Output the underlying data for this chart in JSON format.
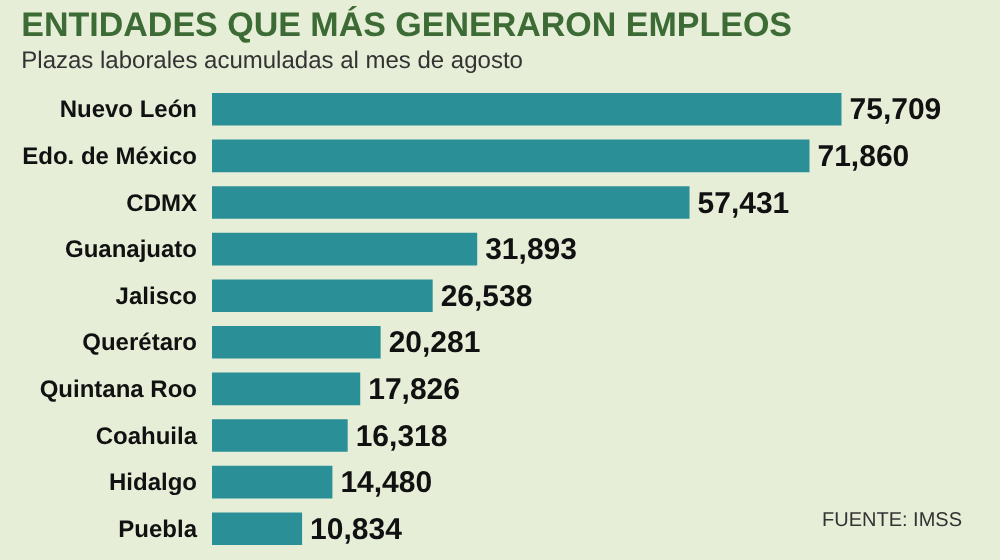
{
  "chart_data": {
    "type": "bar",
    "orientation": "horizontal",
    "title": "ENTIDADES QUE MÁS GENERARON EMPLEOS",
    "subtitle": "Plazas laborales acumuladas al mes de agosto",
    "categories": [
      "Nuevo León",
      "Edo. de México",
      "CDMX",
      "Guanajuato",
      "Jalisco",
      "Querétaro",
      "Quintana Roo",
      "Coahuila",
      "Hidalgo",
      "Puebla"
    ],
    "values": [
      75709,
      71860,
      57431,
      31893,
      26538,
      20281,
      17826,
      16318,
      14480,
      10834
    ],
    "color": "#2a8f96",
    "value_labels": [
      "75,709",
      "71,860",
      "57,431",
      "31,893",
      "26,538",
      "20,281",
      "17,826",
      "16,318",
      "14,480",
      "10,834"
    ],
    "annotations": [
      "FUENTE: IMSS"
    ]
  }
}
